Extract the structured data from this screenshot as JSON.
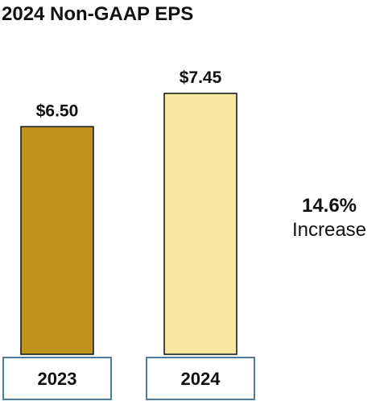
{
  "chart_data": {
    "type": "bar",
    "title": "2024 Non-GAAP EPS",
    "categories": [
      "2023",
      "2024"
    ],
    "values": [
      6.5,
      7.45
    ],
    "value_labels": [
      "$6.50",
      "$7.45"
    ],
    "colors": [
      "#c0941c",
      "#f9e6a3"
    ],
    "xlabel": "",
    "ylabel": "",
    "ylim": [
      0,
      7.45
    ],
    "grid": false,
    "annotation": {
      "value": "14.6%",
      "label": "Increase"
    }
  },
  "style": {
    "bar_outline": "#111111",
    "category_box_border": "#4c7aa0"
  }
}
